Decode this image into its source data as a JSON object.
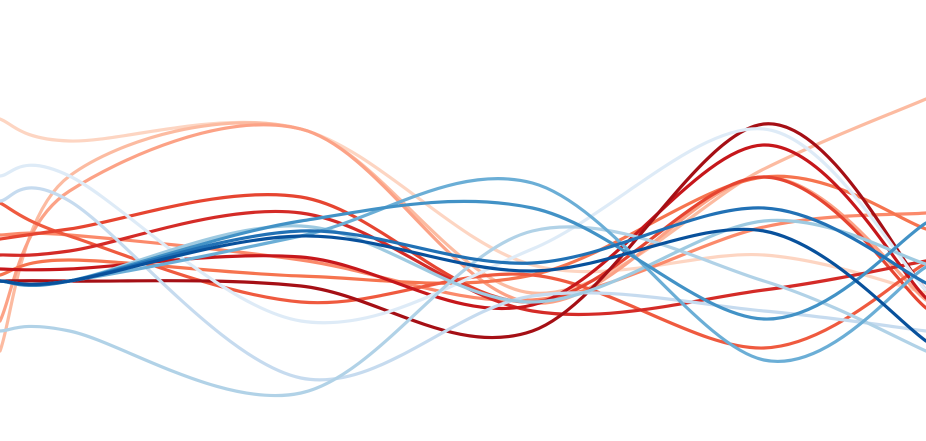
{
  "chart_data": {
    "type": "line",
    "title": "",
    "xlabel": "",
    "ylabel": "",
    "x": [
      0,
      1,
      2,
      3,
      4
    ],
    "xlim": [
      -0.8,
      3.2
    ],
    "ylim": [
      0,
      4.41
    ],
    "grid": false,
    "legend": "none",
    "series": [
      {
        "color": "#fdd5c2",
        "values": [
          3.0,
          3.12,
          1.76,
          1.86,
          1.48
        ],
        "ends": [
          3.22,
          0.9
        ]
      },
      {
        "color": "#fcbba1",
        "values": [
          2.65,
          3.12,
          1.48,
          2.72,
          3.42
        ],
        "ends": [
          0.9,
          4.35
        ]
      },
      {
        "color": "#fca286",
        "values": [
          2.5,
          3.12,
          1.38,
          2.64,
          1.41
        ],
        "ends": [
          1.2,
          1.33
        ]
      },
      {
        "color": "#fb8a6b",
        "values": [
          2.06,
          1.81,
          1.41,
          2.14,
          2.28
        ],
        "ends": [
          2.06,
          2.16
        ]
      },
      {
        "color": "#f6744f",
        "values": [
          1.81,
          1.65,
          1.66,
          2.64,
          2.12
        ],
        "ends": [
          1.66,
          3.17
        ]
      },
      {
        "color": "#ef5a3f",
        "values": [
          2.05,
          1.39,
          1.66,
          0.93,
          1.78
        ],
        "ends": [
          2.38,
          1.9
        ]
      },
      {
        "color": "#e64531",
        "values": [
          2.12,
          2.44,
          1.39,
          2.64,
          1.33
        ],
        "ends": [
          2.02,
          1.0
        ]
      },
      {
        "color": "#d42b27",
        "values": [
          1.9,
          2.28,
          1.3,
          1.51,
          1.8
        ],
        "ends": [
          1.86,
          1.76
        ]
      },
      {
        "color": "#c6171b",
        "values": [
          1.72,
          1.84,
          1.36,
          2.96,
          1.43
        ],
        "ends": [
          1.72,
          0.9
        ]
      },
      {
        "color": "#a50f15",
        "values": [
          1.6,
          1.55,
          1.1,
          3.17,
          1.51
        ],
        "ends": [
          1.6,
          3.5
        ]
      },
      {
        "color": "#deebf7",
        "values": [
          2.65,
          1.2,
          1.92,
          3.12,
          1.51
        ],
        "ends": [
          2.65,
          2.46
        ]
      },
      {
        "color": "#c6dbef",
        "values": [
          2.4,
          0.63,
          1.45,
          1.3,
          1.1
        ],
        "ends": [
          2.4,
          2.06
        ]
      },
      {
        "color": "#b1d2e7",
        "values": [
          1.1,
          0.48,
          2.1,
          1.6,
          0.9
        ],
        "ends": [
          1.1,
          0.5
        ]
      },
      {
        "color": "#9ecae1",
        "values": [
          1.6,
          2.15,
          1.39,
          2.2,
          1.77
        ],
        "ends": [
          1.6,
          1.9
        ]
      },
      {
        "color": "#6baed6",
        "values": [
          1.6,
          2.05,
          2.58,
          0.81,
          1.74
        ],
        "ends": [
          1.6,
          2.42
        ]
      },
      {
        "color": "#4292c6",
        "values": [
          1.6,
          2.2,
          2.33,
          1.22,
          2.18
        ],
        "ends": [
          1.6,
          2.7
        ]
      },
      {
        "color": "#2171b5",
        "values": [
          1.6,
          2.1,
          1.78,
          2.33,
          1.58
        ],
        "ends": [
          1.6,
          1.42
        ]
      },
      {
        "color": "#08519c",
        "values": [
          1.6,
          2.05,
          1.7,
          2.1,
          1.0
        ],
        "ends": [
          1.6,
          2.0
        ]
      }
    ]
  }
}
